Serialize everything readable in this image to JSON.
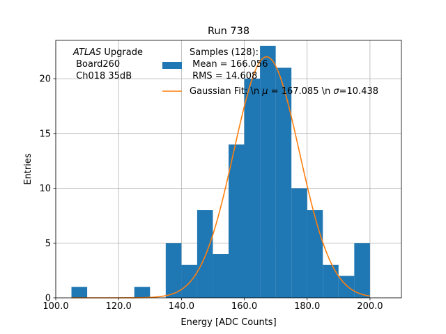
{
  "chart_data": {
    "type": "bar",
    "title": "Run 738",
    "xlabel": "Energy [ADC Counts]",
    "ylabel": "Entries",
    "xlim": [
      100,
      210
    ],
    "ylim": [
      0,
      23.5
    ],
    "grid": true,
    "x_ticks": [
      100,
      120,
      140,
      160,
      180,
      200
    ],
    "x_tick_labels": [
      "100.0",
      "120.0",
      "140.0",
      "160.0",
      "180.0",
      "200.0"
    ],
    "y_ticks": [
      0,
      5,
      10,
      15,
      20
    ],
    "y_tick_labels": [
      "0",
      "5",
      "10",
      "15",
      "20"
    ],
    "annotation": {
      "italic": "ATLAS",
      "rest": " Upgrade",
      "line2": " Board260",
      "line3": " Ch018 35dB"
    },
    "bin_width": 5,
    "series": [
      {
        "name": "histogram",
        "color": "#1f77b4",
        "bin_edges": [
          105,
          110,
          115,
          120,
          125,
          130,
          135,
          140,
          145,
          150,
          155,
          160,
          165,
          170,
          175,
          180,
          185,
          190,
          195,
          200
        ],
        "values": [
          1,
          0,
          0,
          0,
          1,
          0,
          5,
          3,
          8,
          4,
          14,
          20,
          23,
          21,
          10,
          8,
          3,
          2,
          5
        ]
      },
      {
        "name": "gaussian_fit",
        "color": "#ff7f0e",
        "type": "line",
        "x_range": [
          105,
          200
        ],
        "mu": 167.085,
        "sigma": 10.438,
        "amplitude": 22
      }
    ],
    "legend": {
      "location": "top-center",
      "entries": [
        {
          "kind": "patch",
          "color": "#1f77b4",
          "lines": [
            "Samples (128):",
            " Mean = 166.056",
            " RMS = 14.608"
          ]
        },
        {
          "kind": "line",
          "color": "#ff7f0e",
          "prefix": "Gaussian Fit: \\n ",
          "mu_symbol": "μ",
          "mu_part": " = 167.085 \\n ",
          "sigma_symbol": "σ",
          "sigma_part": "=10.438"
        }
      ]
    }
  }
}
